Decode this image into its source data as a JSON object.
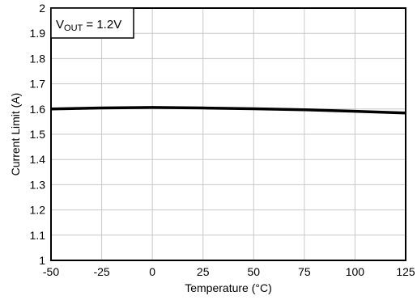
{
  "chart_data": {
    "type": "line",
    "xlabel": "Temperature (°C)",
    "ylabel": "Current Limit (A)",
    "xlim": [
      -50,
      125
    ],
    "ylim": [
      1,
      2
    ],
    "xticks": [
      -50,
      -25,
      0,
      25,
      50,
      75,
      100,
      125
    ],
    "yticks": [
      1,
      1.1,
      1.2,
      1.3,
      1.4,
      1.5,
      1.6,
      1.7,
      1.8,
      1.9,
      2
    ],
    "ytick_labels": [
      "1",
      "1.1",
      "1.2",
      "1.3",
      "1.4",
      "1.5",
      "1.6",
      "1.7",
      "1.8",
      "1.9",
      "2"
    ],
    "grid": true,
    "legend_position": "top-left",
    "annotation": {
      "main": "V",
      "sub": "OUT",
      "rest": " = 1.2V"
    },
    "series": [
      {
        "color": "#000000",
        "x": [
          -50,
          -25,
          0,
          25,
          50,
          75,
          100,
          125
        ],
        "y": [
          1.6,
          1.604,
          1.606,
          1.604,
          1.601,
          1.597,
          1.591,
          1.584
        ]
      }
    ]
  }
}
